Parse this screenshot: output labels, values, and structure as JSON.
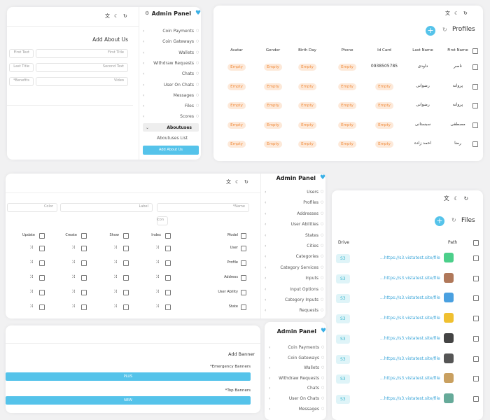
{
  "about_panel": {
    "title": "Admin Panel",
    "menu": [
      "Coin Payments",
      "Coin Gateways",
      "Wallets",
      "Withdraw Requests",
      "Chats",
      "User On Chats",
      "Messages",
      "Files",
      "Scores"
    ],
    "open_menu": "Aboutuses",
    "submenu": [
      "Aboutuses List"
    ],
    "button": "Add About Us",
    "form_title": "Add About Us",
    "fields": [
      {
        "label": "First Text",
        "placeholder": "First Title"
      },
      {
        "label": "Last Title",
        "placeholder": "Second Text"
      },
      {
        "label": "*Benefits",
        "placeholder": "Video"
      }
    ]
  },
  "profiles_panel": {
    "title": "Profiles",
    "columns": [
      "Avatar",
      "Gender",
      "Birth Day",
      "Phone",
      "Id Card",
      "Last Name",
      "First Name"
    ],
    "rows": [
      [
        "Empty",
        "Empty",
        "Empty",
        "Empty",
        "0938505785",
        "داودی",
        "ناصر"
      ],
      [
        "Empty",
        "Empty",
        "Empty",
        "Empty",
        "Empty",
        "رضوانی",
        "پروانه"
      ],
      [
        "Empty",
        "Empty",
        "Empty",
        "Empty",
        "Empty",
        "رضوانی",
        "پروانه"
      ],
      [
        "Empty",
        "Empty",
        "Empty",
        "Empty",
        "Empty",
        "سبستانی",
        "مصطفی"
      ],
      [
        "Empty",
        "Empty",
        "Empty",
        "Empty",
        "Empty",
        "احمد زاده",
        "رضا"
      ]
    ]
  },
  "model_panel": {
    "title": "Admin Panel",
    "menu": [
      "Users",
      "Profiles",
      "Addresses",
      "User Abilities",
      "States",
      "Cities",
      "Categories",
      "Category Services",
      "Inputs",
      "Input Options",
      "Category Inputs",
      "Requests"
    ],
    "inputs": [
      "Color",
      "Label",
      "*Name",
      "Icon"
    ],
    "columns": [
      "Update",
      "Create",
      "Show",
      "Index",
      "Model"
    ],
    "rows": [
      "User",
      "Profile",
      "Address",
      "User Ability",
      "State"
    ]
  },
  "files_panel": {
    "title": "Files",
    "columns": [
      "Drive",
      "Path"
    ],
    "rows": [
      {
        "drive": "S3",
        "path": "...https://s3.vistatest.site/file"
      },
      {
        "drive": "S3",
        "path": "...https://s3.vistatest.site/file"
      },
      {
        "drive": "S3",
        "path": "...https://s3.vistatest.site/file"
      },
      {
        "drive": "S3",
        "path": "...https://s3.vistatest.site/file"
      },
      {
        "drive": "S3",
        "path": "...https://s3.vistatest.site/file"
      },
      {
        "drive": "S3",
        "path": "...https://s3.vistatest.site/file"
      },
      {
        "drive": "S3",
        "path": "...https://s3.vistatest.site/file"
      },
      {
        "drive": "S3",
        "path": "...https://s3.vistatest.site/file"
      }
    ]
  },
  "banner_panel": {
    "title": "Admin Panel",
    "menu": [
      "Coin Payments",
      "Coin Gateways",
      "Wallets",
      "Withdraw Requests",
      "Chats",
      "User On Chats",
      "Messages"
    ],
    "form_title": "Add Banner",
    "sections": [
      {
        "label": "*Emergency Banners",
        "button": "PLUS"
      },
      {
        "label": "*Top Banners",
        "button": "NEW"
      }
    ]
  }
}
